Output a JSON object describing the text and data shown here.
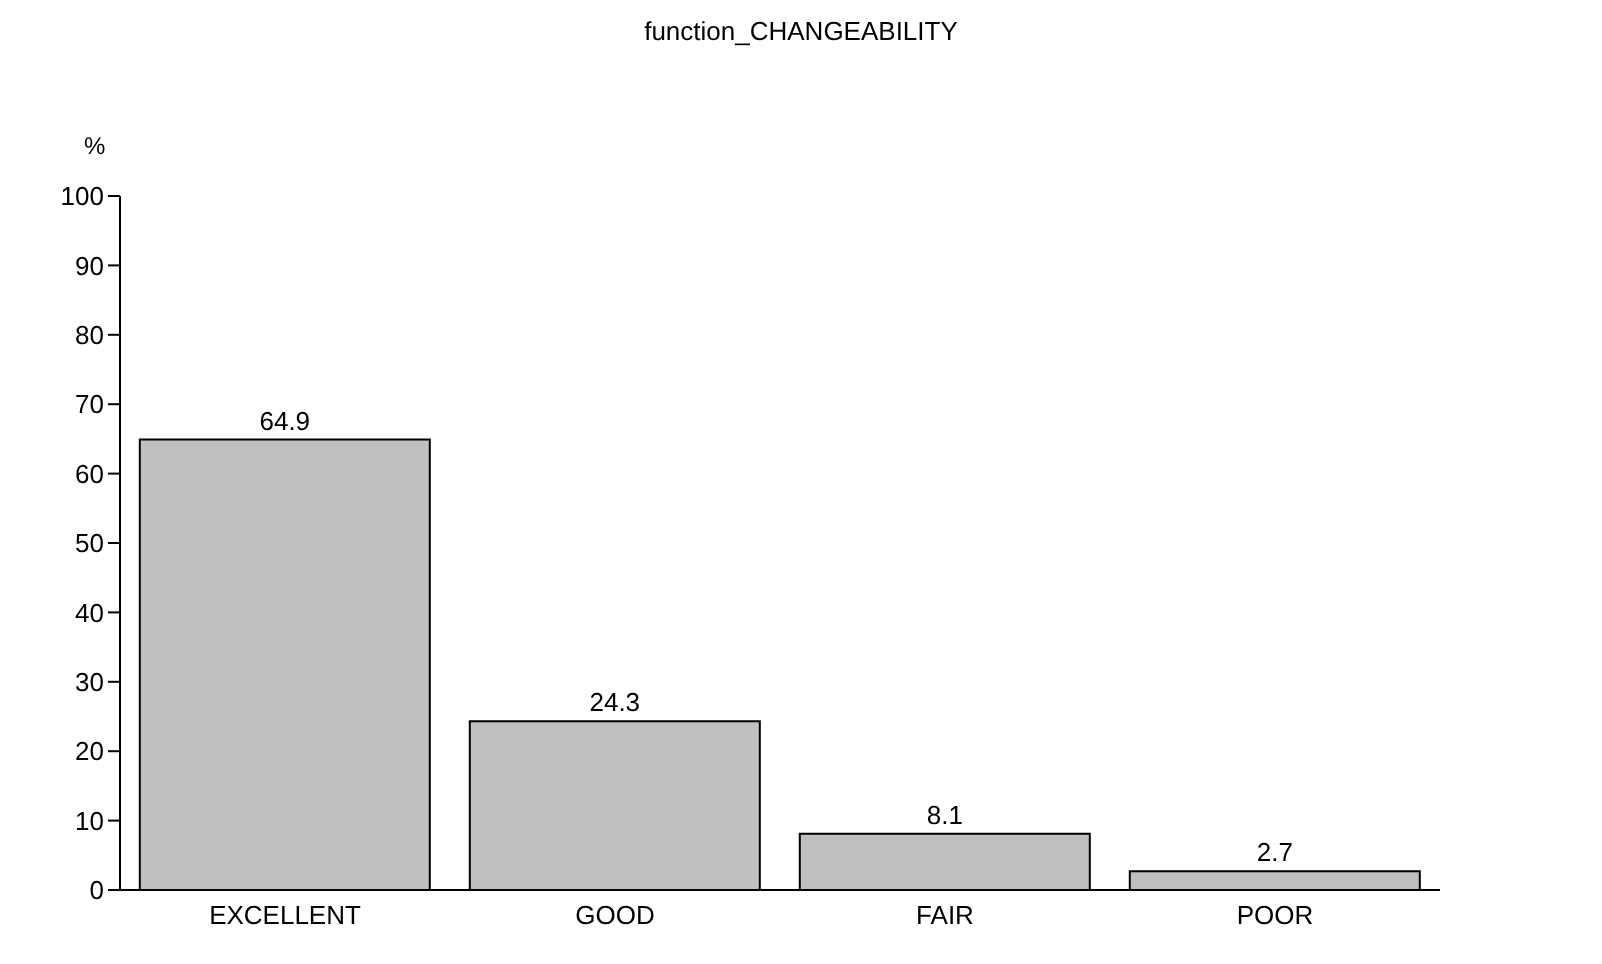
{
  "chart_data": {
    "type": "bar",
    "title": "function_CHANGEABILITY",
    "ylabel": "%",
    "categories": [
      "EXCELLENT",
      "GOOD",
      "FAIR",
      "POOR"
    ],
    "values": [
      64.9,
      24.3,
      8.1,
      2.7
    ],
    "color": "#c0c0c0",
    "ylim": [
      0,
      100
    ],
    "yticks": [
      0,
      10,
      20,
      30,
      40,
      50,
      60,
      70,
      80,
      90,
      100
    ],
    "grid": false,
    "legend": false,
    "data_labels": true
  }
}
